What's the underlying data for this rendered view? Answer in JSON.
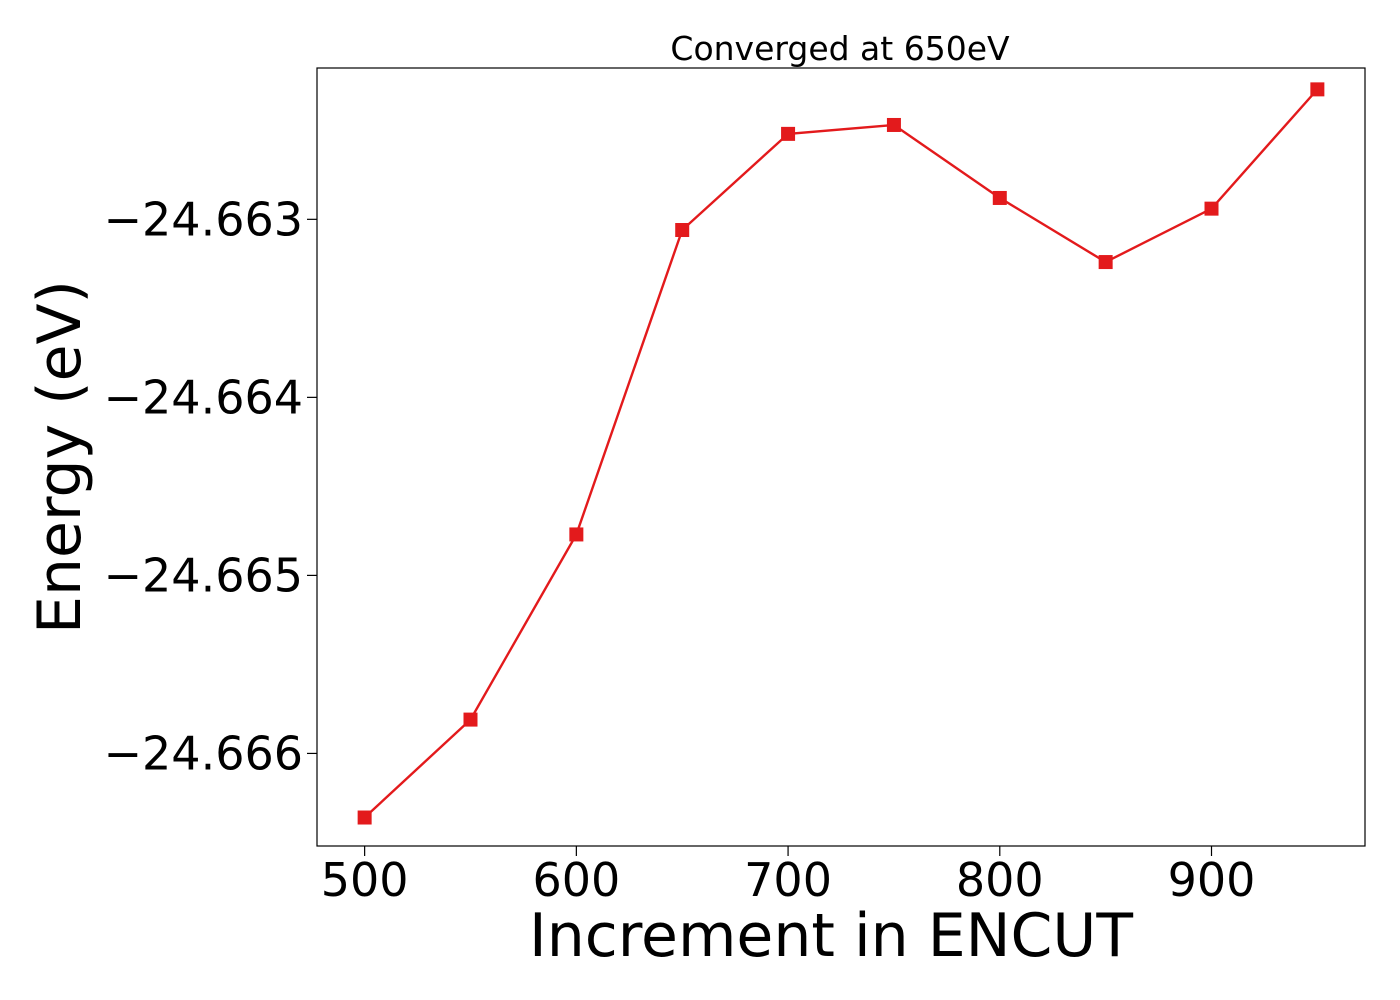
{
  "chart_data": {
    "type": "line",
    "title": "Converged at 650eV",
    "xlabel": "Increment in ENCUT",
    "ylabel": "Energy (eV)",
    "xlim": [
      477.5,
      972.5
    ],
    "ylim": [
      -24.66652,
      -24.66215
    ],
    "x_ticks": [
      500,
      600,
      700,
      800,
      900
    ],
    "x_tick_labels": [
      "500",
      "600",
      "700",
      "800",
      "900"
    ],
    "y_ticks": [
      -24.663,
      -24.664,
      -24.665,
      -24.666
    ],
    "y_tick_labels": [
      "−24.663",
      "−24.664",
      "−24.665",
      "−24.666"
    ],
    "grid": false,
    "legend": "none",
    "series": [
      {
        "color": "#e31a1c",
        "marker": "square",
        "x": [
          500,
          550,
          600,
          650,
          700,
          750,
          800,
          850,
          900,
          950
        ],
        "y": [
          -24.66636,
          -24.66581,
          -24.66477,
          -24.66306,
          -24.66252,
          -24.66247,
          -24.66288,
          -24.66324,
          -24.66294,
          -24.66227
        ]
      }
    ]
  }
}
